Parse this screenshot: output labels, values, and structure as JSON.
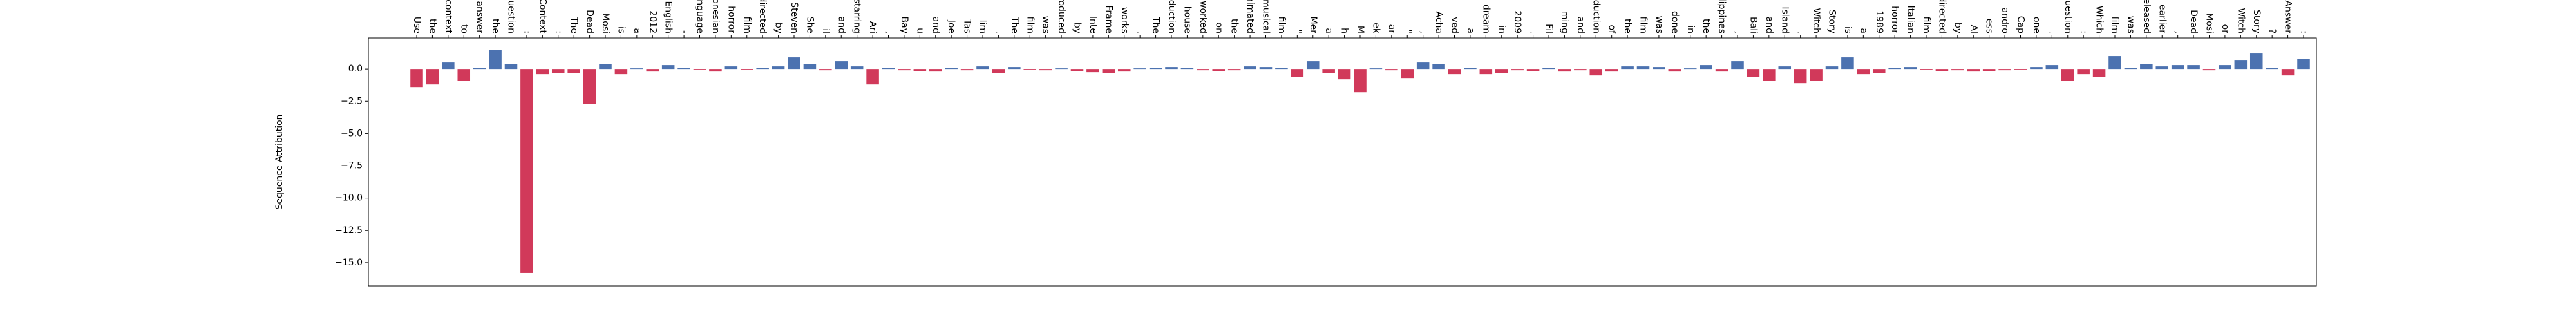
{
  "chart_data": {
    "type": "bar",
    "ylabel": "Sequence Attribution",
    "categories": [
      "Use",
      "the",
      "context",
      "to",
      "answer",
      "the",
      "question",
      ":",
      "Context",
      ":",
      "The",
      "Dead",
      "Mosi",
      "is",
      "a",
      "2012",
      "English",
      "-",
      "language",
      "Indonesian",
      "horror",
      "film",
      "directed",
      "by",
      "Steven",
      "She",
      "il",
      "and",
      "starring",
      "Ari",
      ",",
      "Bay",
      "u",
      "and",
      "Joe",
      "Tas",
      "lim",
      ".",
      "The",
      "film",
      "was",
      "produced",
      "by",
      "Inte",
      "Frame",
      "works",
      ".",
      "The",
      "production",
      "house",
      "worked",
      "on",
      "the",
      "animated",
      "musical",
      "film",
      "\"",
      "Mer",
      "a",
      "h",
      "M",
      "ek",
      "ar",
      "\"",
      ",",
      "Acha",
      "ved",
      "a",
      "dream",
      "in",
      "2009",
      ".",
      "Fil",
      "ming",
      "and",
      "production",
      "of",
      "the",
      "film",
      "was",
      "done",
      "in",
      "the",
      "Philippines",
      ",",
      "Bali",
      "and",
      "Island",
      ".",
      "Witch",
      "Story",
      "is",
      "a",
      "1989",
      "horror",
      "Italian",
      "film",
      "directed",
      "by",
      "Al",
      "ess",
      "andro",
      "Cap",
      "one",
      ".",
      "Question",
      ":",
      "Which",
      "film",
      "was",
      "released",
      "earlier",
      ",",
      "Dead",
      "Mosi",
      "or",
      "Witch",
      "Story",
      "?",
      "Answer",
      ":"
    ],
    "values": [
      -1.4,
      -1.2,
      0.5,
      -0.9,
      0.1,
      1.5,
      0.4,
      -15.8,
      -0.4,
      -0.3,
      -0.3,
      -2.7,
      0.4,
      -0.4,
      0.05,
      -0.2,
      0.3,
      0.1,
      -0.05,
      -0.2,
      0.2,
      -0.05,
      0.1,
      0.2,
      0.9,
      0.4,
      -0.1,
      0.6,
      0.2,
      -1.2,
      0.1,
      -0.1,
      -0.15,
      -0.2,
      0.1,
      -0.1,
      0.2,
      -0.3,
      0.15,
      -0.05,
      -0.1,
      0.05,
      -0.15,
      -0.25,
      -0.3,
      -0.2,
      0.05,
      0.1,
      0.15,
      0.1,
      -0.1,
      -0.15,
      -0.1,
      0.2,
      0.15,
      0.1,
      -0.6,
      0.6,
      -0.3,
      -0.8,
      -1.8,
      0.05,
      -0.1,
      -0.7,
      0.5,
      0.4,
      -0.4,
      0.1,
      -0.4,
      -0.3,
      -0.1,
      -0.15,
      0.1,
      -0.2,
      -0.1,
      -0.5,
      -0.2,
      0.2,
      0.2,
      0.15,
      -0.2,
      0.05,
      0.3,
      -0.2,
      0.6,
      -0.6,
      -0.9,
      0.2,
      -1.1,
      -0.9,
      0.2,
      0.9,
      -0.4,
      -0.3,
      0.1,
      0.15,
      -0.05,
      -0.15,
      -0.1,
      -0.2,
      -0.15,
      -0.1,
      -0.05,
      0.15,
      0.3,
      -0.9,
      -0.4,
      -0.6,
      1.0,
      0.1,
      0.4,
      0.2,
      0.3,
      0.3,
      -0.1,
      0.3,
      0.7,
      1.2,
      0.1,
      -0.5,
      0.8
    ],
    "positive_color": "#4c72b0",
    "negative_color": "#d1395a",
    "ylim": [
      -16.8,
      2.4
    ],
    "yticks": [
      {
        "value": 0,
        "label": "0.0"
      },
      {
        "value": -2.5,
        "label": "−2.5"
      },
      {
        "value": -5,
        "label": "−5.0"
      },
      {
        "value": -7.5,
        "label": "−7.5"
      },
      {
        "value": -10,
        "label": "−10.0"
      },
      {
        "value": -12.5,
        "label": "−12.5"
      },
      {
        "value": -15,
        "label": "−15.0"
      }
    ],
    "grid": false
  }
}
